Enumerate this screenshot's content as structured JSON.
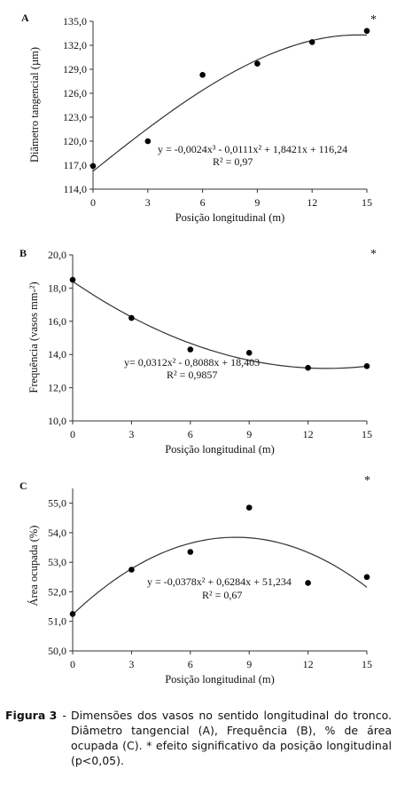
{
  "chart_data": [
    {
      "type": "scatter",
      "panel_label": "A",
      "significance_mark": "*",
      "ylabel": "Diâmetro tangencial (µm)",
      "xlabel": "Posição longitudinal (m)",
      "x_ticks": [
        "0",
        "3",
        "6",
        "9",
        "12",
        "15"
      ],
      "y_ticks": [
        "114,0",
        "117,0",
        "120,0",
        "123,0",
        "126,0",
        "129,0",
        "132,0",
        "135,0"
      ],
      "xlim": [
        0,
        15
      ],
      "ylim": [
        114,
        135
      ],
      "points": [
        {
          "x": 0,
          "y": 116.9
        },
        {
          "x": 3,
          "y": 120.0
        },
        {
          "x": 6,
          "y": 128.3
        },
        {
          "x": 9,
          "y": 129.7
        },
        {
          "x": 12,
          "y": 132.4
        },
        {
          "x": 15,
          "y": 133.8
        }
      ],
      "trend": {
        "type": "polynomial",
        "coefficients": [
          116.24,
          1.8421,
          -0.0111,
          -0.0024
        ]
      },
      "equation": "y = -0,0024x³ - 0,0111x² + 1,8421x + 116,24",
      "r2": "R² = 0,97"
    },
    {
      "type": "scatter",
      "panel_label": "B",
      "significance_mark": "*",
      "ylabel": "Frequência (vasos mm-²)",
      "xlabel": "Posição longitudinal (m)",
      "x_ticks": [
        "0",
        "3",
        "6",
        "9",
        "12",
        "15"
      ],
      "y_ticks": [
        "10,0",
        "12,0",
        "14,0",
        "16,0",
        "18,0",
        "20,0"
      ],
      "xlim": [
        0,
        15
      ],
      "ylim": [
        10,
        20
      ],
      "points": [
        {
          "x": 0,
          "y": 18.5
        },
        {
          "x": 3,
          "y": 16.2
        },
        {
          "x": 6,
          "y": 14.3
        },
        {
          "x": 9,
          "y": 14.1
        },
        {
          "x": 12,
          "y": 13.2
        },
        {
          "x": 15,
          "y": 13.3
        }
      ],
      "trend": {
        "type": "polynomial",
        "coefficients": [
          18.403,
          -0.8088,
          0.0312
        ]
      },
      "equation": "y= 0,0312x² - 0,8088x + 18,403",
      "r2": "R² = 0,9857"
    },
    {
      "type": "scatter",
      "panel_label": "C",
      "significance_mark": "*",
      "ylabel": "Área ocupada (%)",
      "xlabel": "Posição longitudinal (m)",
      "x_ticks": [
        "0",
        "3",
        "6",
        "9",
        "12",
        "15"
      ],
      "y_ticks": [
        "50,0",
        "51,0",
        "52,0",
        "53,0",
        "54,0",
        "55,0"
      ],
      "xlim": [
        0,
        15
      ],
      "ylim": [
        50,
        55.5
      ],
      "points": [
        {
          "x": 0,
          "y": 51.25
        },
        {
          "x": 3,
          "y": 52.75
        },
        {
          "x": 6,
          "y": 53.35
        },
        {
          "x": 9,
          "y": 54.85
        },
        {
          "x": 12,
          "y": 52.3
        },
        {
          "x": 15,
          "y": 52.5
        }
      ],
      "trend": {
        "type": "polynomial",
        "coefficients": [
          51.234,
          0.6284,
          -0.0378
        ]
      },
      "equation": "y = -0,0378x² + 0,6284x + 51,234",
      "r2": "R² = 0,67"
    }
  ],
  "caption": {
    "lead": "Figura 3",
    "dash": "-",
    "text": "Dimensões dos vasos no sentido longitudinal do tronco. Diâmetro tangencial (A), Frequência (B), % de área ocupada (C). * efeito significativo da posição longitudinal (p<0,05)."
  }
}
